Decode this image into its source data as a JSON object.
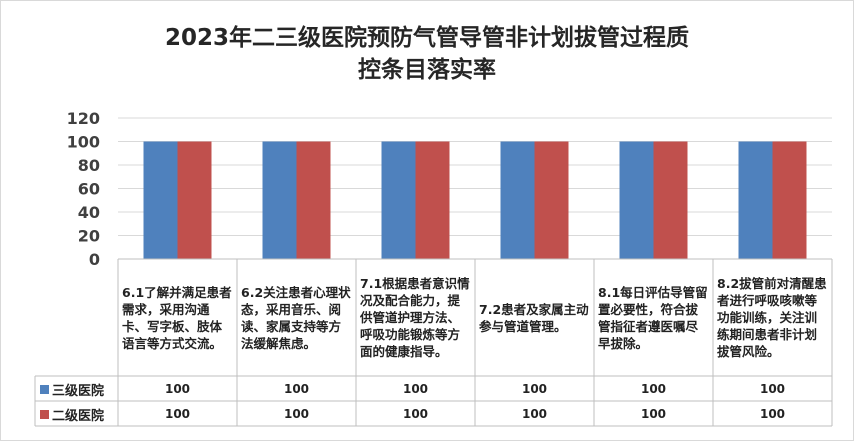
{
  "chart_data": {
    "type": "bar",
    "title_line1": "2023年二三级医院预防气管导管非计划拔管过程质",
    "title_line2": "控条目落实率",
    "ylim": [
      0,
      120
    ],
    "yticks": [
      0,
      20,
      40,
      60,
      80,
      100,
      120
    ],
    "grid": true,
    "legend": "table",
    "categories": [
      "6.1了解并满足患者需求，采用沟通卡、写字板、肢体语言等方式交流。",
      "6.2关注患者心理状态，采用音乐、阅读、家属支持等方法缓解焦虑。",
      "7.1根据患者意识情况及配合能力，提供管道护理方法、呼吸功能锻炼等方面的健康指导。",
      "7.2患者及家属主动参与管道管理。",
      "8.1每日评估导管留置必要性，符合拔管指征者遵医嘱尽早拔除。",
      "8.2拔管前对清醒患者进行呼吸咳嗽等功能训练，关注训练期间患者非计划拔管风险。"
    ],
    "series": [
      {
        "name": "三级医院",
        "color": "#4f81bd",
        "values": [
          100,
          100,
          100,
          100,
          100,
          100
        ]
      },
      {
        "name": "二级医院",
        "color": "#c0504d",
        "values": [
          100,
          100,
          100,
          100,
          100,
          100
        ]
      }
    ]
  }
}
